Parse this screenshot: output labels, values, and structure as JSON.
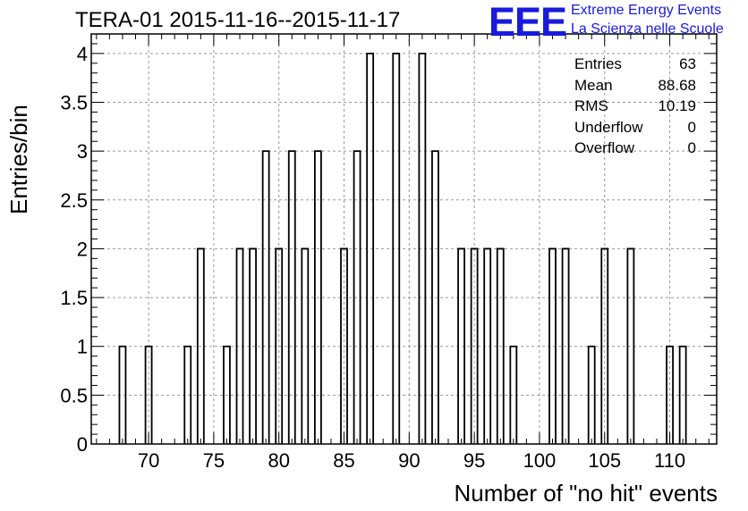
{
  "chart_data": {
    "type": "bar",
    "title": "TERA-01 2015-11-16--2015-11-17",
    "xlabel": "Number of \"no hit\" events",
    "ylabel": "Entries/bin",
    "xlim": [
      65.6,
      113.6
    ],
    "ylim": [
      0,
      4.2
    ],
    "bin_width": 0.48,
    "x_ticks": [
      70,
      75,
      80,
      85,
      90,
      95,
      100,
      105,
      110
    ],
    "y_ticks": [
      0,
      0.5,
      1,
      1.5,
      2,
      2.5,
      3,
      3.5,
      4
    ],
    "y_tick_labels": [
      "0",
      "0.5",
      "1",
      "1.5",
      "2",
      "2.5",
      "3",
      "3.5",
      "4"
    ],
    "grid": true,
    "bins": [
      {
        "x": 68,
        "value": 1
      },
      {
        "x": 70,
        "value": 1
      },
      {
        "x": 73,
        "value": 1
      },
      {
        "x": 74,
        "value": 2
      },
      {
        "x": 76,
        "value": 1
      },
      {
        "x": 77,
        "value": 2
      },
      {
        "x": 78,
        "value": 2
      },
      {
        "x": 79,
        "value": 3
      },
      {
        "x": 80,
        "value": 2
      },
      {
        "x": 81,
        "value": 3
      },
      {
        "x": 82,
        "value": 2
      },
      {
        "x": 83,
        "value": 3
      },
      {
        "x": 85,
        "value": 2
      },
      {
        "x": 86,
        "value": 3
      },
      {
        "x": 87,
        "value": 4
      },
      {
        "x": 89,
        "value": 4
      },
      {
        "x": 91,
        "value": 4
      },
      {
        "x": 92,
        "value": 3
      },
      {
        "x": 94,
        "value": 2
      },
      {
        "x": 95,
        "value": 2
      },
      {
        "x": 96,
        "value": 2
      },
      {
        "x": 97,
        "value": 2
      },
      {
        "x": 98,
        "value": 1
      },
      {
        "x": 101,
        "value": 2
      },
      {
        "x": 102,
        "value": 2
      },
      {
        "x": 104,
        "value": 1
      },
      {
        "x": 105,
        "value": 2
      },
      {
        "x": 107,
        "value": 2
      },
      {
        "x": 110,
        "value": 1
      },
      {
        "x": 111,
        "value": 1
      }
    ],
    "stats": {
      "entries_label": "Entries",
      "entries": "63",
      "mean_label": "Mean",
      "mean": "88.68",
      "rms_label": "RMS",
      "rms": "10.19",
      "underflow_label": "Underflow",
      "underflow": "0",
      "overflow_label": "Overflow",
      "overflow": "0"
    }
  },
  "logo": {
    "mark": "EEE",
    "line1": "Extreme Energy Events",
    "line2": "La Scienza nelle Scuole",
    "color": "#1a1adc"
  }
}
